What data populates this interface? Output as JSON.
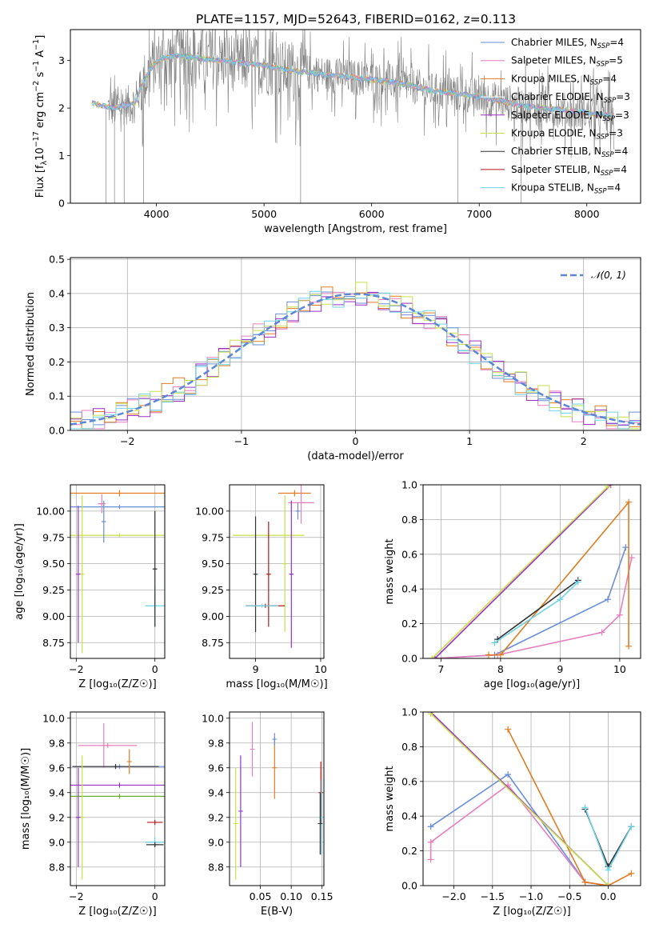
{
  "figure_title": "PLATE=1157, MJD=52643, FIBERID=0162, z=0.113",
  "colors": {
    "chabrier_miles": "#6a8ed8",
    "salpeter_miles": "#e57fbf",
    "kroupa_miles": "#e07b20",
    "chabrier_elodie": "#ffffff",
    "salpeter_elodie": "#9b30c8",
    "kroupa_elodie": "#c7e04a",
    "chabrier_stelib": "#333333",
    "salpeter_stelib": "#b81818",
    "kroupa_stelib": "#6fd3e6",
    "data": "#808080",
    "grid": "#b0b0b0"
  },
  "chart_data": [
    {
      "id": "spectrum",
      "type": "line",
      "title": "PLATE=1157, MJD=52643, FIBERID=0162, z=0.113",
      "xlabel": "wavelength [Angstrom, rest frame]",
      "ylabel_parts": [
        "Flux [f",
        "λ",
        "10",
        "−17",
        " erg cm",
        "−2",
        " s",
        "−1",
        " A",
        "−1",
        "]"
      ],
      "xlim": [
        3200,
        8500
      ],
      "ylim": [
        0,
        3.65
      ],
      "xticks": [
        4000,
        5000,
        6000,
        7000,
        8000
      ],
      "yticks": [
        0,
        1,
        2,
        3
      ],
      "grid": false,
      "legend_position": "top-right",
      "legend": [
        {
          "label": "Chabrier MILES, N",
          "sub": "SSP",
          "suffix": "=4",
          "color": "#6a8ed8"
        },
        {
          "label": "Salpeter MILES, N",
          "sub": "SSP",
          "suffix": "=5",
          "color": "#e57fbf"
        },
        {
          "label": "Kroupa MILES, N",
          "sub": "SSP",
          "suffix": "=4",
          "color": "#e07b20"
        },
        {
          "label": "Chabrier ELODIE, N",
          "sub": "SSP",
          "suffix": "=3",
          "color": "#ffffff"
        },
        {
          "label": "Salpeter ELODIE, N",
          "sub": "SSP",
          "suffix": "=3",
          "color": "#9b30c8"
        },
        {
          "label": "Kroupa ELODIE, N",
          "sub": "SSP",
          "suffix": "=3",
          "color": "#c7e04a"
        },
        {
          "label": "Chabrier STELIB, N",
          "sub": "SSP",
          "suffix": "=4",
          "color": "#333333"
        },
        {
          "label": "Salpeter STELIB, N",
          "sub": "SSP",
          "suffix": "=4",
          "color": "#b81818"
        },
        {
          "label": "Kroupa STELIB, N",
          "sub": "SSP",
          "suffix": "=4",
          "color": "#6fd3e6"
        }
      ],
      "continuum": [
        [
          3400,
          2.1
        ],
        [
          3500,
          2.05
        ],
        [
          3600,
          2.0
        ],
        [
          3700,
          2.05
        ],
        [
          3800,
          2.1
        ],
        [
          3850,
          2.4
        ],
        [
          3950,
          2.85
        ],
        [
          4050,
          3.05
        ],
        [
          4200,
          3.1
        ],
        [
          4400,
          3.05
        ],
        [
          4600,
          3.0
        ],
        [
          4800,
          2.95
        ],
        [
          5000,
          2.9
        ],
        [
          5200,
          2.8
        ],
        [
          5400,
          2.75
        ],
        [
          5600,
          2.7
        ],
        [
          5800,
          2.65
        ],
        [
          6000,
          2.6
        ],
        [
          6200,
          2.55
        ],
        [
          6400,
          2.45
        ],
        [
          6600,
          2.35
        ],
        [
          6800,
          2.3
        ],
        [
          7000,
          2.25
        ],
        [
          7200,
          2.15
        ],
        [
          7400,
          2.05
        ],
        [
          7600,
          2.0
        ],
        [
          7800,
          1.95
        ],
        [
          8000,
          1.9
        ],
        [
          8200,
          1.85
        ]
      ]
    },
    {
      "id": "residuals",
      "type": "histogram",
      "xlabel": "(data-model)/error",
      "ylabel": "Normed distribution",
      "xlim": [
        -2.5,
        2.5
      ],
      "ylim": [
        0,
        0.505
      ],
      "xticks": [
        -2,
        -1,
        0,
        1,
        2
      ],
      "yticks": [
        0.0,
        0.1,
        0.2,
        0.3,
        0.4,
        0.5
      ],
      "grid": true,
      "legend_position": "top-right",
      "legend": [
        {
          "label": "𝒩(0, 1)",
          "color": "#5b87d6",
          "style": "dashed"
        }
      ],
      "bin_width": 0.1,
      "bin_start": -2.5,
      "bin_heights_example": [
        0.03,
        0.03,
        0.03,
        0.04,
        0.05,
        0.05,
        0.06,
        0.07,
        0.08,
        0.09,
        0.1,
        0.11,
        0.13,
        0.15,
        0.16,
        0.16,
        0.17,
        0.19,
        0.21,
        0.22,
        0.24,
        0.25,
        0.27,
        0.29,
        0.3,
        0.32,
        0.33,
        0.35,
        0.36,
        0.37,
        0.38,
        0.39,
        0.39,
        0.4,
        0.4,
        0.4,
        0.4,
        0.39,
        0.39,
        0.38,
        0.37,
        0.36,
        0.35,
        0.33,
        0.32,
        0.3,
        0.29,
        0.27,
        0.25,
        0.24
      ],
      "normal_curve": {
        "mean": 0,
        "sigma": 1
      }
    },
    {
      "id": "age-vs-Z",
      "type": "errorbar",
      "xlabel": "Z [log₁₀(Z/Z☉)]",
      "ylabel": "age  [log₁₀(age/yr)]",
      "xlim": [
        -2.15,
        0.25
      ],
      "ylim": [
        8.6,
        10.25
      ],
      "xticks": [
        -2,
        0
      ],
      "yticks": [
        8.75,
        9.0,
        9.25,
        9.5,
        9.75,
        10.0
      ],
      "grid": true,
      "points": [
        {
          "x": -0.9,
          "y": 10.17,
          "xerr": 1.25,
          "yerr": 0.03,
          "color": "#e07b20"
        },
        {
          "x": -0.9,
          "y": 10.04,
          "xerr": 1.35,
          "yerr": 0.02,
          "color": "#6a8ed8"
        },
        {
          "x": -1.35,
          "y": 10.07,
          "xerr": 0.1,
          "yerr": 0.09,
          "color": "#e57fbf"
        },
        {
          "x": -0.9,
          "y": 9.77,
          "xerr": 1.35,
          "yerr": 0.02,
          "color": "#c7e04a"
        },
        {
          "x": -1.3,
          "y": 9.9,
          "xerr": 0.04,
          "yerr": 0.2,
          "color": "#6a8ed8"
        },
        {
          "x": 0.0,
          "y": 9.1,
          "xerr": 0.25,
          "yerr": 0.2,
          "color": "#6fd3e6"
        },
        {
          "x": 0.0,
          "y": 9.45,
          "xerr": 0.04,
          "yerr": 0.55,
          "color": "#333333"
        },
        {
          "x": -1.85,
          "y": 9.4,
          "xerr": 0.03,
          "yerr": 0.75,
          "color": "#c7e04a"
        },
        {
          "x": -1.95,
          "y": 9.4,
          "xerr": 0.03,
          "yerr": 0.65,
          "color": "#9b30c8"
        }
      ]
    },
    {
      "id": "age-vs-mass",
      "type": "errorbar",
      "xlabel": "mass [log₁₀(M/M☉)]",
      "ylabel": "",
      "xlim": [
        8.6,
        10.05
      ],
      "ylim": [
        8.6,
        10.25
      ],
      "xticks": [
        9,
        10
      ],
      "yticks": [
        8.75,
        9.0,
        9.25,
        9.5,
        9.75,
        10.0
      ],
      "grid": true,
      "points": [
        {
          "x": 9.6,
          "y": 10.17,
          "xerr": 0.25,
          "yerr": 0.03,
          "color": "#e07b20"
        },
        {
          "x": 9.7,
          "y": 10.08,
          "xerr": 0.2,
          "yerr": 0.2,
          "color": "#e57fbf"
        },
        {
          "x": 9.65,
          "y": 10.0,
          "xerr": 0.02,
          "yerr": 0.08,
          "color": "#6a8ed8"
        },
        {
          "x": 9.2,
          "y": 9.77,
          "xerr": 0.55,
          "yerr": 0.02,
          "color": "#c7e04a"
        },
        {
          "x": 9.45,
          "y": 9.5,
          "xerr": 0.02,
          "yerr": 0.65,
          "color": "#c7e04a"
        },
        {
          "x": 9.0,
          "y": 9.4,
          "xerr": 0.02,
          "yerr": 0.55,
          "color": "#333333"
        },
        {
          "x": 9.15,
          "y": 9.1,
          "xerr": 0.3,
          "yerr": 0.02,
          "color": "#b81818"
        },
        {
          "x": 9.2,
          "y": 9.4,
          "xerr": 0.02,
          "yerr": 0.5,
          "color": "#b81818"
        },
        {
          "x": 9.1,
          "y": 9.1,
          "xerr": 0.25,
          "yerr": 0.02,
          "color": "#6fd3e6"
        },
        {
          "x": 9.55,
          "y": 9.4,
          "xerr": 0.02,
          "yerr": 0.7,
          "color": "#9b30c8"
        }
      ]
    },
    {
      "id": "weight-vs-age",
      "type": "line",
      "xlabel": "age  [log₁₀(age/yr)]",
      "ylabel": "mass weight",
      "xlim": [
        6.7,
        10.35
      ],
      "ylim": [
        0,
        1.0
      ],
      "xticks": [
        7,
        8,
        9,
        10
      ],
      "yticks": [
        0.0,
        0.2,
        0.4,
        0.6,
        0.8,
        1.0
      ],
      "grid": true,
      "series": [
        {
          "color": "#6a8ed8",
          "x": [
            6.9,
            7.9,
            9.8,
            10.1
          ],
          "y": [
            0.0,
            0.02,
            0.34,
            0.64
          ]
        },
        {
          "color": "#e57fbf",
          "x": [
            6.9,
            7.95,
            9.7,
            10.0,
            10.2
          ],
          "y": [
            0.0,
            0.02,
            0.15,
            0.25,
            0.58
          ]
        },
        {
          "color": "#e07b20",
          "x": [
            7.8,
            8.0,
            10.15,
            10.15
          ],
          "y": [
            0.02,
            0.02,
            0.9,
            0.07
          ]
        },
        {
          "color": "#9b30c8",
          "x": [
            6.9,
            9.85
          ],
          "y": [
            0.0,
            1.0
          ]
        },
        {
          "color": "#c7e04a",
          "x": [
            6.85,
            9.8
          ],
          "y": [
            0.0,
            0.99
          ]
        },
        {
          "color": "#333333",
          "x": [
            7.95,
            9.3
          ],
          "y": [
            0.11,
            0.45
          ]
        },
        {
          "color": "#6fd3e6",
          "x": [
            7.9,
            9.0,
            9.3
          ],
          "y": [
            0.09,
            0.34,
            0.44
          ]
        }
      ]
    },
    {
      "id": "mass-vs-Z",
      "type": "errorbar",
      "xlabel": "Z [log₁₀(Z/Z☉)]",
      "ylabel": "mass [log₁₀(M/M☉)]",
      "xlim": [
        -2.15,
        0.25
      ],
      "ylim": [
        8.65,
        10.05
      ],
      "xticks": [
        -2,
        0
      ],
      "yticks": [
        8.8,
        9.0,
        9.2,
        9.4,
        9.6,
        9.8,
        10.0
      ],
      "grid": true,
      "points": [
        {
          "x": -1.2,
          "y": 9.78,
          "xerr": 0.75,
          "yerr": 0.02,
          "color": "#e57fbf"
        },
        {
          "x": -1.3,
          "y": 9.78,
          "xerr": 0.04,
          "yerr": 0.18,
          "color": "#e57fbf"
        },
        {
          "x": -0.9,
          "y": 9.61,
          "xerr": 1.2,
          "yerr": 0.02,
          "color": "#6a8ed8"
        },
        {
          "x": -1.0,
          "y": 9.61,
          "xerr": 1.1,
          "yerr": 0.02,
          "color": "#333333"
        },
        {
          "x": -0.65,
          "y": 9.65,
          "xerr": 0.02,
          "yerr": 0.1,
          "color": "#e07b20"
        },
        {
          "x": -0.9,
          "y": 9.46,
          "xerr": 1.3,
          "yerr": 0.02,
          "color": "#9b30c8"
        },
        {
          "x": -0.9,
          "y": 9.37,
          "xerr": 1.3,
          "yerr": 0.02,
          "color": "#6eae2a"
        },
        {
          "x": 0.0,
          "y": 9.16,
          "xerr": 0.2,
          "yerr": 0.02,
          "color": "#b81818"
        },
        {
          "x": 0.0,
          "y": 9.0,
          "xerr": 0.25,
          "yerr": 0.04,
          "color": "#6fd3e6"
        },
        {
          "x": 0.0,
          "y": 8.98,
          "xerr": 0.22,
          "yerr": 0.02,
          "color": "#333333"
        },
        {
          "x": -1.85,
          "y": 9.2,
          "xerr": 0.03,
          "yerr": 0.5,
          "color": "#c7e04a"
        },
        {
          "x": -1.95,
          "y": 9.2,
          "xerr": 0.03,
          "yerr": 0.4,
          "color": "#9b30c8"
        }
      ]
    },
    {
      "id": "mass-vs-ebv",
      "type": "errorbar",
      "xlabel": "E(B-V)",
      "ylabel": "",
      "xlim": [
        0.0,
        0.153
      ],
      "ylim": [
        8.65,
        10.05
      ],
      "xticks": [
        0.05,
        0.1,
        0.15
      ],
      "xtick_labels": [
        "0.05",
        "0.10",
        "0.15"
      ],
      "yticks": [
        8.8,
        9.0,
        9.2,
        9.4,
        9.6,
        9.8,
        10.0
      ],
      "grid": true,
      "points": [
        {
          "x": 0.01,
          "y": 9.15,
          "yerr": 0.45,
          "color": "#c7e04a"
        },
        {
          "x": 0.018,
          "y": 9.25,
          "yerr": 0.45,
          "color": "#9b30c8"
        },
        {
          "x": 0.037,
          "y": 9.75,
          "yerr": 0.22,
          "color": "#e57fbf"
        },
        {
          "x": 0.073,
          "y": 9.6,
          "yerr": 0.25,
          "color": "#e07b20"
        },
        {
          "x": 0.073,
          "y": 9.83,
          "yerr": 0.05,
          "color": "#6a8ed8"
        },
        {
          "x": 0.148,
          "y": 9.4,
          "yerr": 0.25,
          "color": "#b81818"
        },
        {
          "x": 0.149,
          "y": 9.2,
          "yerr": 0.3,
          "color": "#6fd3e6"
        },
        {
          "x": 0.147,
          "y": 9.15,
          "yerr": 0.25,
          "color": "#333333"
        }
      ]
    },
    {
      "id": "weight-vs-Z",
      "type": "line",
      "xlabel": "Z [log₁₀(Z/Z☉)]",
      "ylabel": "mass weight",
      "xlim": [
        -2.4,
        0.42
      ],
      "ylim": [
        0,
        1.0
      ],
      "xticks": [
        -2.0,
        -1.5,
        -1.0,
        -0.5,
        0.0
      ],
      "xtick_labels": [
        "−2.0",
        "−1.5",
        "−1.0",
        "−0.5",
        "0.0"
      ],
      "yticks": [
        0.0,
        0.2,
        0.4,
        0.6,
        0.8,
        1.0
      ],
      "grid": true,
      "series": [
        {
          "color": "#6a8ed8",
          "x": [
            -2.3,
            -1.3,
            -0.3,
            0.0
          ],
          "y": [
            0.34,
            0.64,
            0.02,
            0.0
          ]
        },
        {
          "color": "#e57fbf",
          "x": [
            -2.3,
            -2.3,
            -1.3,
            -0.3,
            0.0
          ],
          "y": [
            0.15,
            0.25,
            0.58,
            0.02,
            0.0
          ]
        },
        {
          "color": "#e07b20",
          "x": [
            -1.3,
            -0.3,
            0.0,
            0.3
          ],
          "y": [
            0.9,
            0.02,
            0.0,
            0.07
          ]
        },
        {
          "color": "#9b30c8",
          "x": [
            -2.3,
            0.0
          ],
          "y": [
            1.0,
            0.0
          ]
        },
        {
          "color": "#c7e04a",
          "x": [
            -2.3,
            0.0
          ],
          "y": [
            0.99,
            0.0
          ]
        },
        {
          "color": "#333333",
          "x": [
            -0.3,
            0.0,
            0.3
          ],
          "y": [
            0.44,
            0.11,
            0.34
          ]
        },
        {
          "color": "#6fd3e6",
          "x": [
            -0.3,
            0.0,
            0.3
          ],
          "y": [
            0.45,
            0.09,
            0.34
          ]
        }
      ]
    }
  ]
}
